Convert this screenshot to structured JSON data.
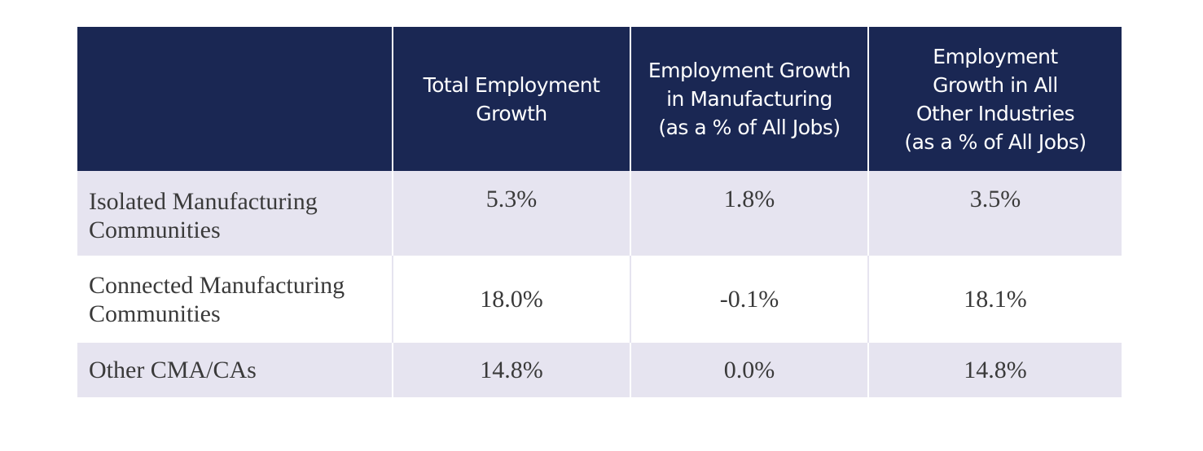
{
  "chart_data": {
    "type": "table",
    "columns": [
      "",
      "Total Employment Growth",
      "Employment Growth in Manufacturing (as a % of All Jobs)",
      "Employment Growth in All Other Industries (as a % of All Jobs)"
    ],
    "header_lines": [
      [],
      [
        "Total Employment",
        "Growth"
      ],
      [
        "Employment Growth",
        "in Manufacturing",
        "(as a % of All Jobs)"
      ],
      [
        "Employment",
        "Growth in All",
        "Other Industries",
        "(as a % of All Jobs)"
      ]
    ],
    "rows": [
      {
        "label_lines": [
          "Isolated Manufacturing",
          "Communities"
        ],
        "values": [
          "5.3%",
          "1.8%",
          "3.5%"
        ]
      },
      {
        "label_lines": [
          "Connected Manufacturing",
          "Communities"
        ],
        "values": [
          "18.0%",
          "-0.1%",
          "18.1%"
        ]
      },
      {
        "label_lines": [
          "Other CMA/CAs"
        ],
        "values": [
          "14.8%",
          "0.0%",
          "14.8%"
        ]
      }
    ],
    "colors": {
      "header_bg": "#1a2753",
      "header_text": "#ffffff",
      "shaded_row_bg": "#e6e4f0",
      "body_text": "#3a3a3a"
    }
  }
}
